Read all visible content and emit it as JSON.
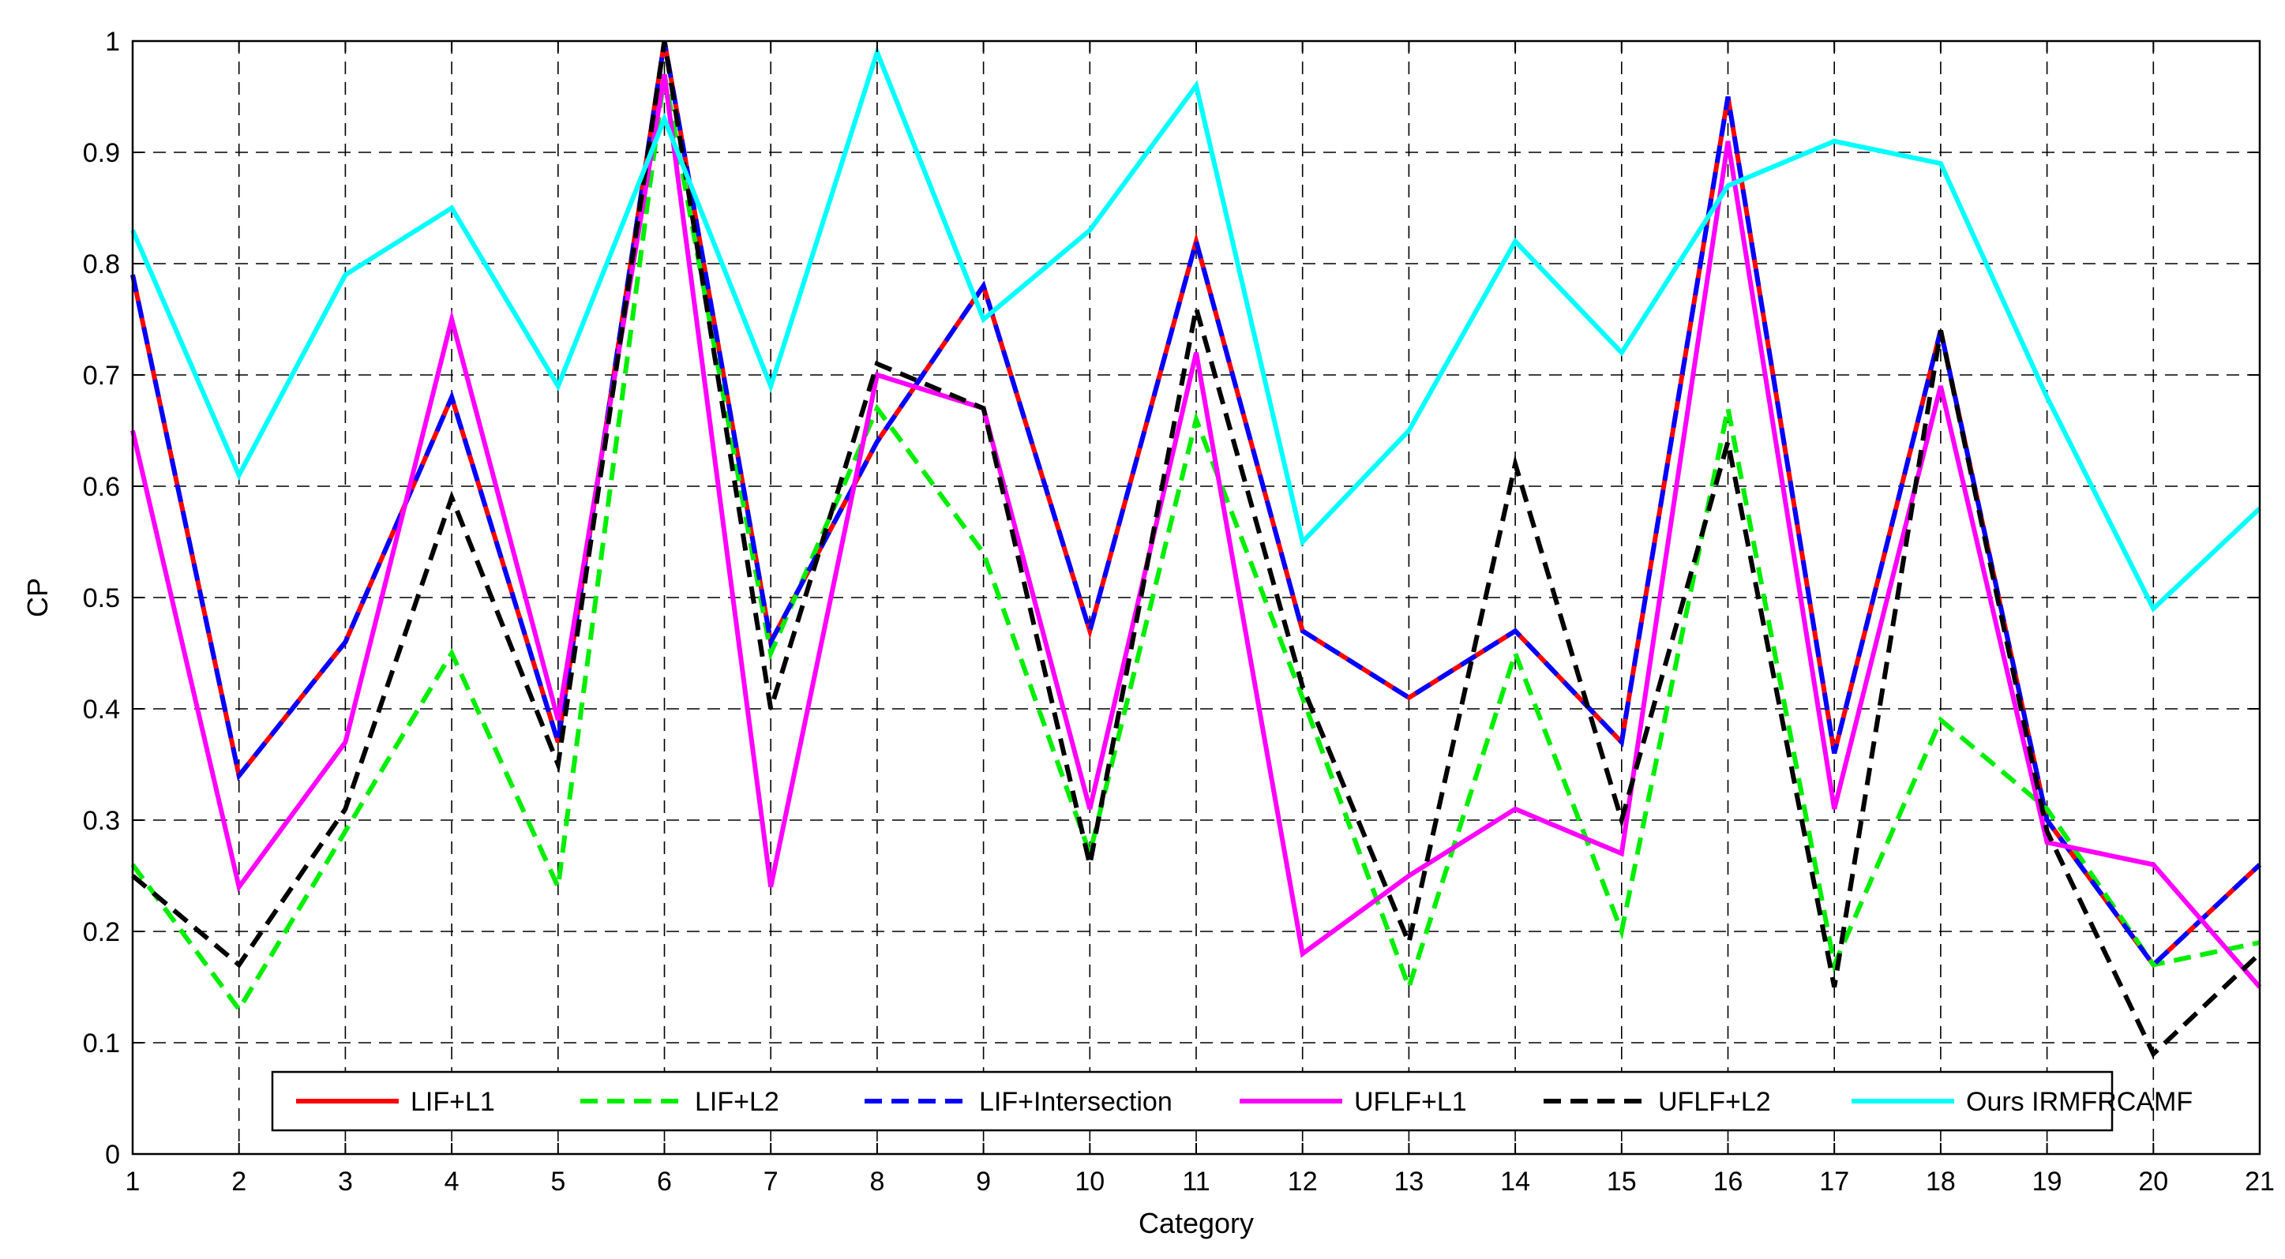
{
  "chart_data": {
    "type": "line",
    "title": "",
    "xlabel": "Category",
    "ylabel": "CP",
    "xlim": [
      1,
      21
    ],
    "ylim": [
      0,
      1
    ],
    "grid": true,
    "legend_position": "bottom",
    "x": [
      1,
      2,
      3,
      4,
      5,
      6,
      7,
      8,
      9,
      10,
      11,
      12,
      13,
      14,
      15,
      16,
      17,
      18,
      19,
      20,
      21
    ],
    "x_tick_labels": [
      "1",
      "2",
      "3",
      "4",
      "5",
      "6",
      "7",
      "8",
      "9",
      "10",
      "11",
      "12",
      "13",
      "14",
      "15",
      "16",
      "17",
      "18",
      "19",
      "20",
      "21"
    ],
    "y_ticks": [
      0,
      0.1,
      0.2,
      0.3,
      0.4,
      0.5,
      0.6,
      0.7,
      0.8,
      0.9,
      1
    ],
    "y_tick_labels": [
      "0",
      "0.1",
      "0.2",
      "0.3",
      "0.4",
      "0.5",
      "0.6",
      "0.7",
      "0.8",
      "0.9",
      "1"
    ],
    "series": [
      {
        "name": "LIF+L1",
        "color": "#ff0000",
        "dash": "solid",
        "values": [
          0.79,
          0.34,
          0.46,
          0.68,
          0.37,
          1.0,
          0.46,
          0.64,
          0.78,
          0.47,
          0.82,
          0.47,
          0.41,
          0.47,
          0.37,
          0.95,
          0.36,
          0.74,
          0.3,
          0.17,
          0.26
        ]
      },
      {
        "name": "LIF+L2",
        "color": "#00ee00",
        "dash": "dashed",
        "values": [
          0.26,
          0.13,
          0.29,
          0.45,
          0.24,
          0.97,
          0.45,
          0.67,
          0.54,
          0.27,
          0.66,
          0.41,
          0.15,
          0.45,
          0.2,
          0.67,
          0.17,
          0.39,
          0.31,
          0.17,
          0.19
        ]
      },
      {
        "name": "LIF+Intersection",
        "color": "#0000ff",
        "dash": "dashed",
        "values": [
          0.79,
          0.34,
          0.46,
          0.68,
          0.37,
          1.0,
          0.46,
          0.64,
          0.78,
          0.47,
          0.82,
          0.47,
          0.41,
          0.47,
          0.37,
          0.95,
          0.36,
          0.74,
          0.3,
          0.17,
          0.26
        ]
      },
      {
        "name": "UFLF+L1",
        "color": "#ff00ff",
        "dash": "solid",
        "values": [
          0.65,
          0.24,
          0.37,
          0.75,
          0.39,
          0.97,
          0.24,
          0.7,
          0.67,
          0.31,
          0.72,
          0.18,
          0.25,
          0.31,
          0.27,
          0.91,
          0.31,
          0.69,
          0.28,
          0.26,
          0.15
        ]
      },
      {
        "name": "UFLF+L2",
        "color": "#000000",
        "dash": "dashed",
        "values": [
          0.25,
          0.17,
          0.31,
          0.59,
          0.35,
          1.0,
          0.4,
          0.71,
          0.67,
          0.26,
          0.76,
          0.42,
          0.19,
          0.62,
          0.3,
          0.64,
          0.15,
          0.74,
          0.29,
          0.09,
          0.18
        ]
      },
      {
        "name": "Ours IRMFRCAMF",
        "color": "#00ffff",
        "dash": "solid",
        "values": [
          0.83,
          0.61,
          0.79,
          0.85,
          0.69,
          0.93,
          0.69,
          0.99,
          0.75,
          0.83,
          0.96,
          0.55,
          0.65,
          0.82,
          0.72,
          0.87,
          0.91,
          0.89,
          0.68,
          0.49,
          0.58
        ]
      }
    ]
  }
}
